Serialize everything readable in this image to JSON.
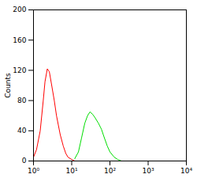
{
  "chart_data": {
    "type": "line",
    "log": "x",
    "grid": false,
    "y_label": "Counts",
    "x": [
      1,
      1.2,
      1.5,
      1.8,
      2,
      2.3,
      2.6,
      3,
      3.5,
      4,
      5,
      6,
      7,
      8,
      10,
      12,
      15,
      18,
      22,
      26,
      30,
      35,
      40,
      50,
      60,
      70,
      85,
      100,
      130,
      160,
      200
    ],
    "series": [
      {
        "color": "#ff0000",
        "values": [
          5,
          15,
          40,
          80,
          105,
          122,
          118,
          100,
          80,
          60,
          35,
          20,
          10,
          5,
          2,
          0,
          null,
          null,
          null,
          null,
          null,
          null,
          null,
          null,
          null,
          null,
          null,
          null,
          null,
          null,
          null
        ]
      },
      {
        "color": "#00dd00",
        "values": [
          null,
          null,
          null,
          null,
          null,
          null,
          null,
          null,
          null,
          null,
          null,
          null,
          null,
          null,
          null,
          3,
          12,
          30,
          50,
          60,
          65,
          62,
          58,
          50,
          42,
          32,
          20,
          12,
          5,
          2,
          0
        ]
      }
    ],
    "xlim": [
      1,
      10000
    ],
    "xticks": [
      {
        "value": 1,
        "label": "10⁰"
      },
      {
        "value": 10,
        "label": "10¹"
      },
      {
        "value": 100,
        "label": "10²"
      },
      {
        "value": 1000,
        "label": "10³"
      },
      {
        "value": 10000,
        "label": "10⁴"
      }
    ],
    "ylim": [
      0,
      200
    ],
    "yticks": [
      0,
      40,
      80,
      120,
      160,
      200
    ]
  }
}
